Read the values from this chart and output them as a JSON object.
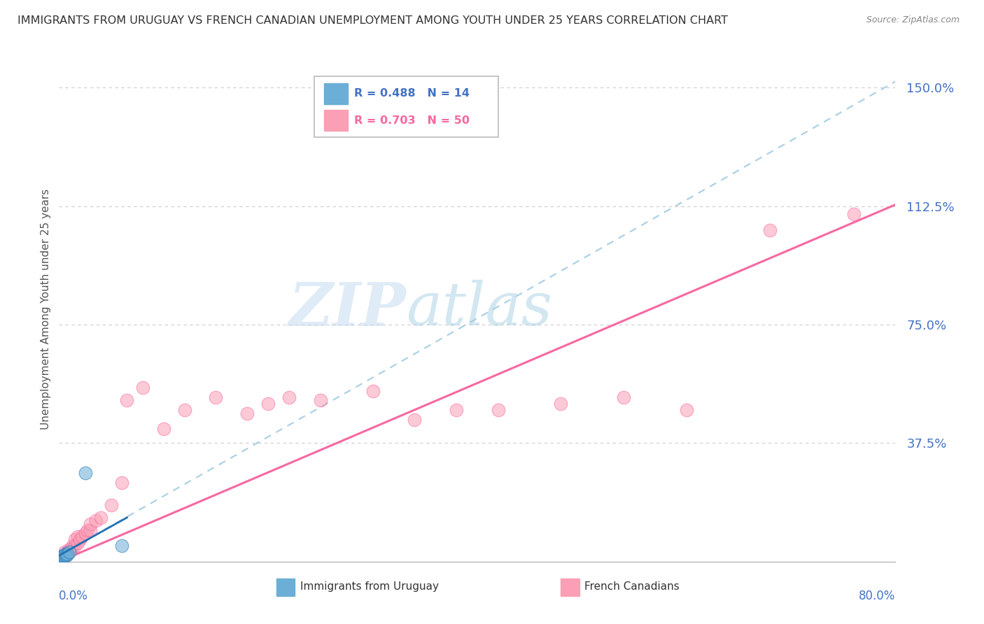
{
  "title": "IMMIGRANTS FROM URUGUAY VS FRENCH CANADIAN UNEMPLOYMENT AMONG YOUTH UNDER 25 YEARS CORRELATION CHART",
  "source": "Source: ZipAtlas.com",
  "xlabel_bottom_left": "0.0%",
  "xlabel_bottom_right": "80.0%",
  "ylabel": "Unemployment Among Youth under 25 years",
  "yticks": [
    0.0,
    0.375,
    0.75,
    1.125,
    1.5
  ],
  "ytick_labels": [
    "",
    "37.5%",
    "75.0%",
    "112.5%",
    "150.0%"
  ],
  "xlim": [
    0.0,
    0.8
  ],
  "ylim": [
    0.0,
    1.6
  ],
  "legend1_label": "R = 0.488   N = 14",
  "legend2_label": "R = 0.703   N = 50",
  "legend_bottom_label1": "Immigrants from Uruguay",
  "legend_bottom_label2": "French Canadians",
  "blue_color": "#6baed6",
  "pink_color": "#fa9fb5",
  "blue_line_color": "#9ecae1",
  "pink_line_color": "#f768a1",
  "axis_label_color": "#4472c4",
  "blue_scatter_x": [
    0.001,
    0.002,
    0.002,
    0.003,
    0.003,
    0.004,
    0.004,
    0.005,
    0.006,
    0.007,
    0.008,
    0.01,
    0.025,
    0.06
  ],
  "blue_scatter_y": [
    0.005,
    0.008,
    0.01,
    0.01,
    0.012,
    0.015,
    0.02,
    0.02,
    0.025,
    0.02,
    0.025,
    0.03,
    0.28,
    0.05
  ],
  "pink_scatter_x": [
    0.001,
    0.001,
    0.002,
    0.002,
    0.003,
    0.003,
    0.004,
    0.004,
    0.005,
    0.005,
    0.006,
    0.007,
    0.008,
    0.009,
    0.01,
    0.01,
    0.012,
    0.013,
    0.015,
    0.015,
    0.018,
    0.018,
    0.02,
    0.022,
    0.025,
    0.027,
    0.03,
    0.03,
    0.035,
    0.04,
    0.05,
    0.06,
    0.065,
    0.08,
    0.1,
    0.12,
    0.15,
    0.18,
    0.2,
    0.22,
    0.25,
    0.3,
    0.34,
    0.38,
    0.42,
    0.48,
    0.54,
    0.6,
    0.68,
    0.76
  ],
  "pink_scatter_y": [
    0.005,
    0.01,
    0.01,
    0.015,
    0.01,
    0.015,
    0.015,
    0.02,
    0.02,
    0.03,
    0.02,
    0.025,
    0.03,
    0.03,
    0.03,
    0.04,
    0.04,
    0.05,
    0.05,
    0.07,
    0.06,
    0.08,
    0.07,
    0.08,
    0.09,
    0.1,
    0.1,
    0.12,
    0.13,
    0.14,
    0.18,
    0.25,
    0.51,
    0.55,
    0.42,
    0.48,
    0.52,
    0.47,
    0.5,
    0.52,
    0.51,
    0.54,
    0.45,
    0.48,
    0.48,
    0.5,
    0.52,
    0.48,
    1.05,
    1.1
  ],
  "pink_line_x0": 0.0,
  "pink_line_y0": 0.0,
  "pink_line_x1": 0.8,
  "pink_line_y1": 1.13,
  "blue_line_x0": 0.0,
  "blue_line_y0": 0.02,
  "blue_line_x1": 0.8,
  "blue_line_y1": 1.52
}
